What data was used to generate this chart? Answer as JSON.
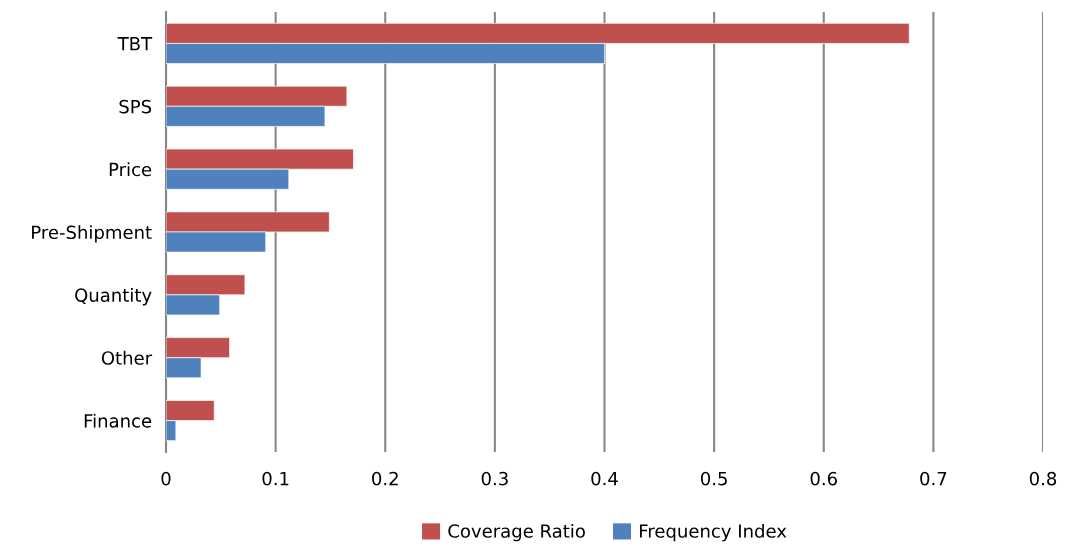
{
  "chart_data": {
    "type": "bar",
    "orientation": "horizontal",
    "categories": [
      "TBT",
      "SPS",
      "Price",
      "Pre-Shipment",
      "Quantity",
      "Other",
      "Finance"
    ],
    "series": [
      {
        "name": "Coverage Ratio",
        "color": "#c0504d",
        "values": [
          0.678,
          0.165,
          0.171,
          0.149,
          0.072,
          0.058,
          0.044
        ]
      },
      {
        "name": "Frequency Index",
        "color": "#4f81bd",
        "values": [
          0.4,
          0.145,
          0.112,
          0.091,
          0.049,
          0.032,
          0.009
        ]
      }
    ],
    "xlim": [
      0,
      0.8
    ],
    "xticks": [
      0,
      0.1,
      0.2,
      0.3,
      0.4,
      0.5,
      0.6,
      0.7,
      0.8
    ],
    "grid": "x",
    "legend": "bottom"
  }
}
